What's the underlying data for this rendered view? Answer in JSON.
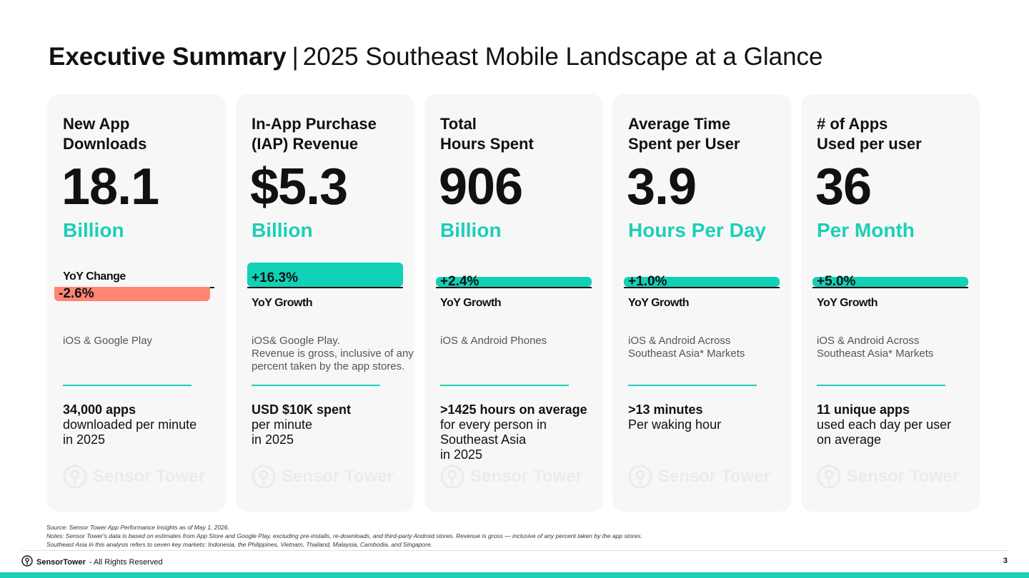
{
  "header": {
    "title_bold": "Executive Summary",
    "separator": "|",
    "title_rest": "2025 Southeast Mobile Landscape at a Glance"
  },
  "cards": [
    {
      "label_line1": "New App",
      "label_line2": "Downloads",
      "value": "18.1",
      "unit": "Billion",
      "change_label": "YoY Change",
      "change": "-2.6%",
      "change_fraction": 0.026,
      "desc": [
        "iOS & Google Play"
      ],
      "stat_bold": "34,000 apps",
      "stat_rest": [
        "downloaded per minute",
        "in 2025"
      ]
    },
    {
      "label_line1": "In-App Purchase",
      "label_line2": "(IAP) Revenue",
      "value": "$5.3",
      "unit": "Billion",
      "change_label": "YoY Growth",
      "change": "+16.3%",
      "change_fraction": 0.163,
      "desc": [
        "iOS& Google Play.",
        "Revenue is gross, inclusive of any",
        "percent taken by the app stores."
      ],
      "stat_bold": "USD $10K spent",
      "stat_rest": [
        "per minute",
        "in 2025"
      ]
    },
    {
      "label_line1": "Total",
      "label_line2": "Hours Spent",
      "value": "906",
      "unit": "Billion",
      "change_label": "YoY Growth",
      "change": "+2.4%",
      "change_fraction": 0.024,
      "desc": [
        "iOS & Android Phones"
      ],
      "stat_bold": ">1425 hours on average",
      "stat_rest": [
        "for every person in",
        "Southeast Asia",
        "in 2025"
      ]
    },
    {
      "label_line1": "Average Time",
      "label_line2": "Spent per User",
      "value": "3.9",
      "unit": "Hours Per Day",
      "change_label": "YoY Growth",
      "change": "+1.0%",
      "change_fraction": 0.01,
      "desc": [
        "iOS & Android Across",
        "Southeast Asia* Markets"
      ],
      "stat_bold": ">13 minutes",
      "stat_rest": [
        "Per waking hour"
      ]
    },
    {
      "label_line1": "# of Apps",
      "label_line2": "Used per user",
      "value": "36",
      "unit": "Per Month",
      "change_label": "YoY Growth",
      "change": "+5.0%",
      "change_fraction": 0.05,
      "desc": [
        "iOS & Android Across",
        "Southeast Asia* Markets"
      ],
      "stat_bold": "11 unique apps",
      "stat_rest": [
        "used each day per user",
        "on average"
      ]
    }
  ],
  "watermark": {
    "text": "Sensor Tower",
    "icon": "sensor-tower-logo-icon"
  },
  "notes": [
    "Source: Sensor Tower App Performance Insights as of May 1, 2026.",
    "Notes: Sensor Tower's data is based on estimates from App Store and Google Play, excluding pre-installs, re-downloads, and third-party Android stores. Revenue is gross — inclusive of any percent taken by the app stores.",
    "Southeast Asia in this analysis refers to seven key markets: Indonesia, the Philippines, Vietnam, Thailand, Malaysia, Cambodia, and Singapore."
  ],
  "footer": {
    "brand": "SensorTower",
    "rights": "- All Rights Reserved",
    "page": "3"
  },
  "colors": {
    "accent": "#1ccfb8",
    "bar": "#11d1b6",
    "negative": "#ff8672",
    "card_bg": "#f7f7f7"
  }
}
